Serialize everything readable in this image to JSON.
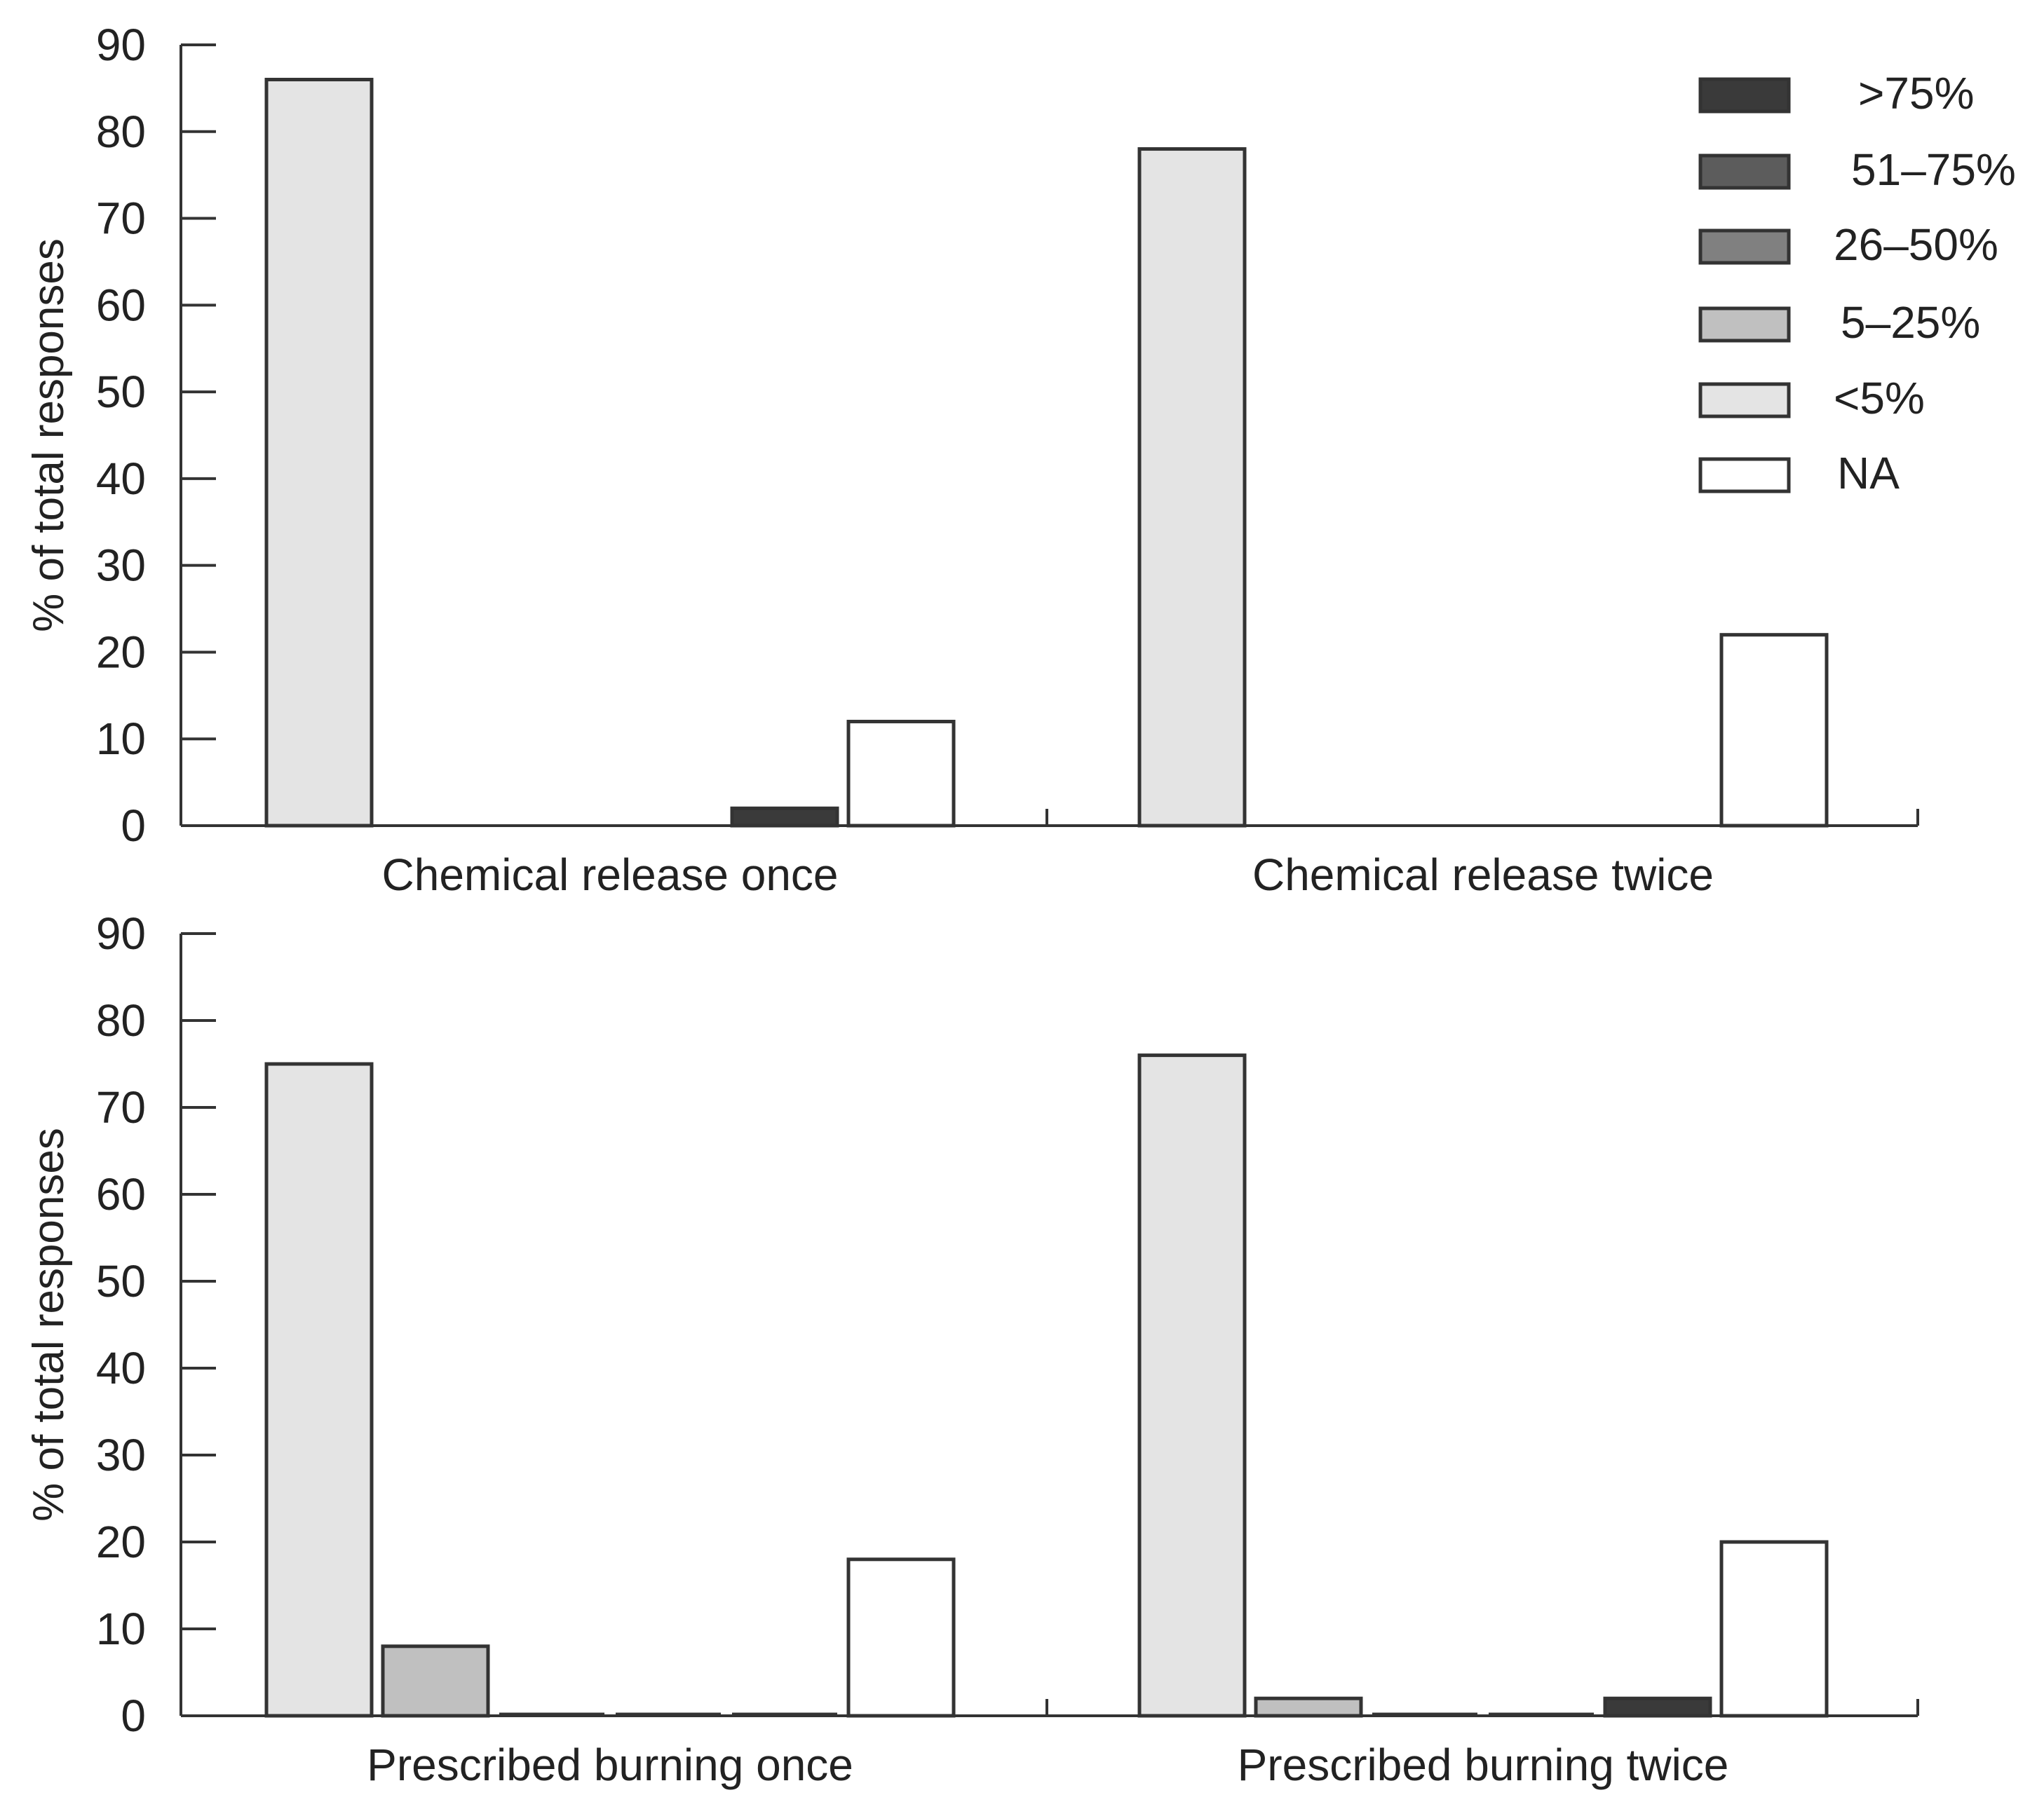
{
  "chart_data": [
    {
      "type": "bar",
      "panel": "top",
      "categories": [
        "Chemical release once",
        "Chemical release twice"
      ],
      "ylabel": "% of total responses",
      "ylim": [
        0,
        90
      ],
      "yticks": [
        0,
        10,
        20,
        30,
        40,
        50,
        60,
        70,
        80,
        90
      ],
      "series": [
        {
          "name": "<5%",
          "values": [
            86,
            78
          ]
        },
        {
          "name": "5–25%",
          "values": [
            0,
            0
          ]
        },
        {
          "name": "26–50%",
          "values": [
            0,
            0
          ]
        },
        {
          "name": "51–75%",
          "values": [
            0,
            0
          ]
        },
        {
          "name": ">75%",
          "values": [
            2,
            0
          ]
        },
        {
          "name": "NA",
          "values": [
            12,
            22
          ]
        }
      ]
    },
    {
      "type": "bar",
      "panel": "bottom",
      "categories": [
        "Prescribed burning once",
        "Prescribed burning twice"
      ],
      "ylabel": "% of total responses",
      "ylim": [
        0,
        90
      ],
      "yticks": [
        0,
        10,
        20,
        30,
        40,
        50,
        60,
        70,
        80,
        90
      ],
      "series": [
        {
          "name": "<5%",
          "values": [
            75,
            76
          ]
        },
        {
          "name": "5–25%",
          "values": [
            8,
            2
          ]
        },
        {
          "name": "26–50%",
          "values": [
            0,
            0
          ]
        },
        {
          "name": "51–75%",
          "values": [
            0,
            0
          ]
        },
        {
          "name": ">75%",
          "values": [
            0,
            2
          ]
        },
        {
          "name": "NA",
          "values": [
            18,
            20
          ]
        }
      ]
    }
  ],
  "legend": {
    "placement": "top-right",
    "entries": [
      {
        "label": ">75%",
        "color": "#3a3a3a"
      },
      {
        "label": "51–75%",
        "color": "#5c5c5c"
      },
      {
        "label": "26–50%",
        "color": "#808080"
      },
      {
        "label": "5–25%",
        "color": "#c0c0c0"
      },
      {
        "label": "<5%",
        "color": "#e4e4e4"
      },
      {
        "label": "NA",
        "color": "#ffffff"
      }
    ]
  },
  "series_colors": {
    "<5%": "#e4e4e4",
    "5–25%": "#c0c0c0",
    "26–50%": "#808080",
    "51–75%": "#5c5c5c",
    ">75%": "#3a3a3a",
    "NA": "#ffffff"
  }
}
